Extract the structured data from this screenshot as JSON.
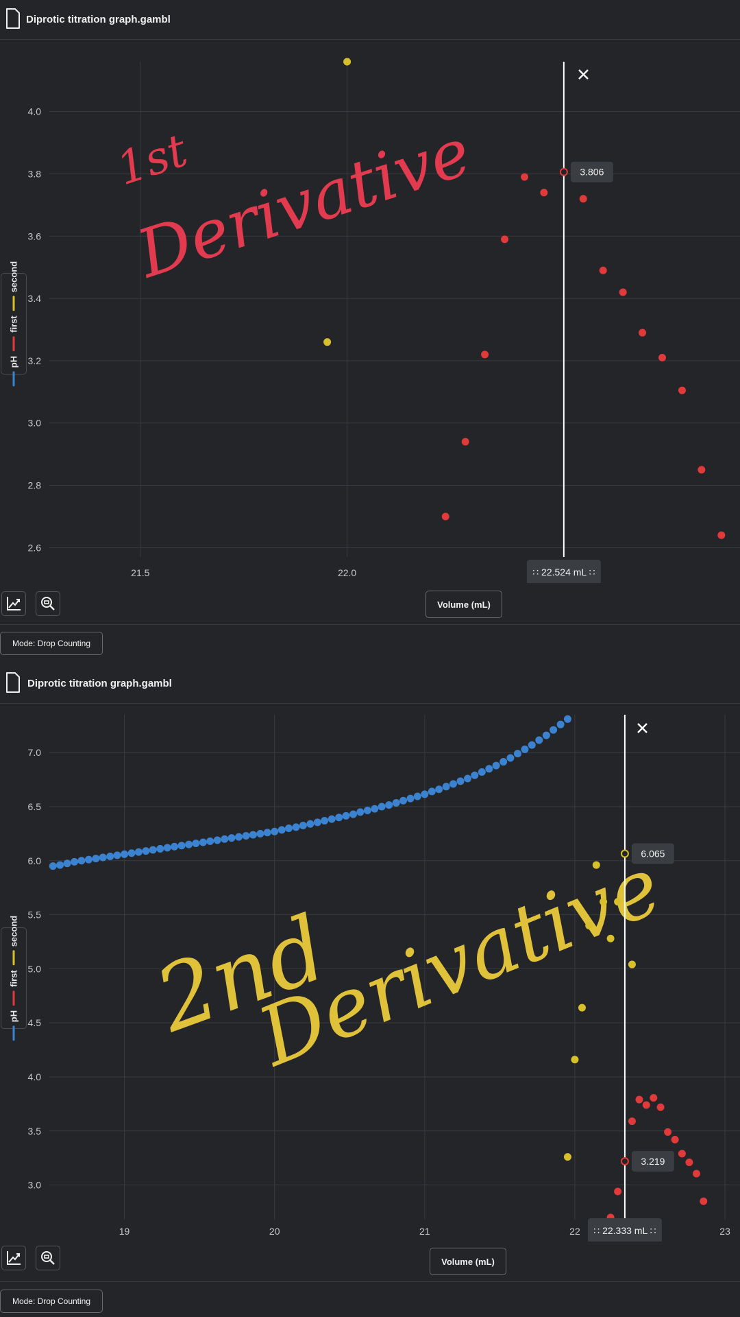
{
  "panels": [
    {
      "file_name": "Diprotic titration graph.gambl",
      "mode_label": "Mode: Drop Counting",
      "legend": [
        "pH",
        "first",
        "second"
      ],
      "colors": {
        "pH": "#3b82d0",
        "first": "#e03a3a",
        "second": "#d8c02c",
        "cursor": "#ffffff"
      },
      "annotation": {
        "line1": "1st",
        "line2": "Derivative",
        "color": "#e23a4e"
      },
      "chart_data": {
        "type": "scatter",
        "xlabel": "Volume (mL)",
        "xlim": [
          21.28,
          22.95
        ],
        "ylim": [
          2.57,
          4.16
        ],
        "xticks": [
          21.5,
          22.0
        ],
        "xtick_labels": [
          "21.5",
          "22.0"
        ],
        "yticks": [
          2.6,
          2.8,
          3.0,
          3.2,
          3.4,
          3.6,
          3.8,
          4.0
        ],
        "ytick_labels": [
          "2.6",
          "2.8",
          "3.0",
          "3.2",
          "3.4",
          "3.6",
          "3.8",
          "4.0"
        ],
        "grid": true,
        "series": [
          {
            "name": "pH",
            "points": []
          },
          {
            "name": "first",
            "points": [
              [
                22.238,
                2.7
              ],
              [
                22.286,
                2.94
              ],
              [
                22.333,
                3.22
              ],
              [
                22.381,
                3.59
              ],
              [
                22.429,
                3.79
              ],
              [
                22.476,
                3.74
              ],
              [
                22.524,
                3.806
              ],
              [
                22.571,
                3.72
              ],
              [
                22.619,
                3.49
              ],
              [
                22.667,
                3.42
              ],
              [
                22.714,
                3.29
              ],
              [
                22.762,
                3.21
              ],
              [
                22.81,
                3.105
              ],
              [
                22.857,
                2.85
              ],
              [
                22.905,
                2.64
              ]
            ]
          },
          {
            "name": "second",
            "points": [
              [
                21.952,
                3.26
              ],
              [
                22.0,
                4.16
              ]
            ]
          }
        ],
        "cursor": {
          "x": 22.524,
          "label": "22.524 mL",
          "highlight": {
            "series": "first",
            "x": 22.524,
            "y": 3.806,
            "label": "3.806"
          }
        }
      }
    },
    {
      "file_name": "Diprotic titration graph.gambl",
      "mode_label": "Mode: Drop Counting",
      "legend": [
        "pH",
        "first",
        "second"
      ],
      "colors": {
        "pH": "#3b82d0",
        "first": "#e03a3a",
        "second": "#d8c02c",
        "cursor": "#ffffff"
      },
      "annotation": {
        "line1": "2nd",
        "line2": "Derivative",
        "color": "#e0c23a"
      },
      "chart_data": {
        "type": "scatter",
        "xlabel": "Volume (mL)",
        "xlim": [
          18.5,
          23.1
        ],
        "ylim": [
          2.68,
          7.35
        ],
        "xticks": [
          19,
          20,
          21,
          22,
          23
        ],
        "xtick_labels": [
          "19",
          "20",
          "21",
          "22",
          "23"
        ],
        "yticks": [
          3.0,
          3.5,
          4.0,
          4.5,
          5.0,
          5.5,
          6.0,
          6.5,
          7.0
        ],
        "ytick_labels": [
          "3.0",
          "3.5",
          "4.0",
          "4.5",
          "5.0",
          "5.5",
          "6.0",
          "6.5",
          "7.0"
        ],
        "grid": true,
        "series": [
          {
            "name": "pH",
            "points": [
              [
                18.524,
                5.95
              ],
              [
                18.571,
                5.96
              ],
              [
                18.619,
                5.975
              ],
              [
                18.667,
                5.99
              ],
              [
                18.714,
                6.0
              ],
              [
                18.762,
                6.01
              ],
              [
                18.81,
                6.02
              ],
              [
                18.857,
                6.03
              ],
              [
                18.905,
                6.04
              ],
              [
                18.952,
                6.05
              ],
              [
                19.0,
                6.06
              ],
              [
                19.048,
                6.07
              ],
              [
                19.095,
                6.08
              ],
              [
                19.143,
                6.09
              ],
              [
                19.19,
                6.1
              ],
              [
                19.238,
                6.11
              ],
              [
                19.286,
                6.12
              ],
              [
                19.333,
                6.13
              ],
              [
                19.381,
                6.14
              ],
              [
                19.429,
                6.15
              ],
              [
                19.476,
                6.16
              ],
              [
                19.524,
                6.17
              ],
              [
                19.571,
                6.18
              ],
              [
                19.619,
                6.19
              ],
              [
                19.667,
                6.2
              ],
              [
                19.714,
                6.21
              ],
              [
                19.762,
                6.22
              ],
              [
                19.81,
                6.23
              ],
              [
                19.857,
                6.24
              ],
              [
                19.905,
                6.25
              ],
              [
                19.952,
                6.26
              ],
              [
                20.0,
                6.27
              ],
              [
                20.048,
                6.285
              ],
              [
                20.095,
                6.3
              ],
              [
                20.143,
                6.31
              ],
              [
                20.19,
                6.325
              ],
              [
                20.238,
                6.34
              ],
              [
                20.286,
                6.355
              ],
              [
                20.333,
                6.37
              ],
              [
                20.381,
                6.385
              ],
              [
                20.429,
                6.4
              ],
              [
                20.476,
                6.415
              ],
              [
                20.524,
                6.43
              ],
              [
                20.571,
                6.45
              ],
              [
                20.619,
                6.465
              ],
              [
                20.667,
                6.48
              ],
              [
                20.714,
                6.5
              ],
              [
                20.762,
                6.515
              ],
              [
                20.81,
                6.535
              ],
              [
                20.857,
                6.555
              ],
              [
                20.905,
                6.575
              ],
              [
                20.952,
                6.595
              ],
              [
                21.0,
                6.615
              ],
              [
                21.048,
                6.64
              ],
              [
                21.095,
                6.66
              ],
              [
                21.143,
                6.685
              ],
              [
                21.19,
                6.71
              ],
              [
                21.238,
                6.735
              ],
              [
                21.286,
                6.76
              ],
              [
                21.333,
                6.79
              ],
              [
                21.381,
                6.82
              ],
              [
                21.429,
                6.85
              ],
              [
                21.476,
                6.88
              ],
              [
                21.524,
                6.915
              ],
              [
                21.571,
                6.95
              ],
              [
                21.619,
                6.99
              ],
              [
                21.667,
                7.03
              ],
              [
                21.714,
                7.07
              ],
              [
                21.762,
                7.115
              ],
              [
                21.81,
                7.16
              ],
              [
                21.857,
                7.21
              ],
              [
                21.905,
                7.26
              ],
              [
                21.952,
                7.31
              ]
            ]
          },
          {
            "name": "first",
            "points": [
              [
                22.238,
                2.7
              ],
              [
                22.286,
                2.94
              ],
              [
                22.333,
                3.219
              ],
              [
                22.381,
                3.59
              ],
              [
                22.429,
                3.79
              ],
              [
                22.476,
                3.74
              ],
              [
                22.524,
                3.806
              ],
              [
                22.571,
                3.72
              ],
              [
                22.619,
                3.49
              ],
              [
                22.667,
                3.42
              ],
              [
                22.714,
                3.29
              ],
              [
                22.762,
                3.21
              ],
              [
                22.81,
                3.105
              ],
              [
                22.857,
                2.85
              ]
            ]
          },
          {
            "name": "second",
            "points": [
              [
                21.952,
                3.26
              ],
              [
                22.0,
                4.16
              ],
              [
                22.048,
                4.64
              ],
              [
                22.095,
                5.4
              ],
              [
                22.143,
                5.96
              ],
              [
                22.19,
                5.62
              ],
              [
                22.238,
                5.28
              ],
              [
                22.286,
                5.62
              ],
              [
                22.333,
                6.065
              ],
              [
                22.381,
                5.04
              ]
            ]
          }
        ],
        "cursor": {
          "x": 22.333,
          "label": "22.333 mL",
          "highlight": [
            {
              "series": "second",
              "x": 22.333,
              "y": 6.065,
              "label": "6.065"
            },
            {
              "series": "first",
              "x": 22.333,
              "y": 3.219,
              "label": "3.219"
            }
          ]
        }
      }
    }
  ]
}
